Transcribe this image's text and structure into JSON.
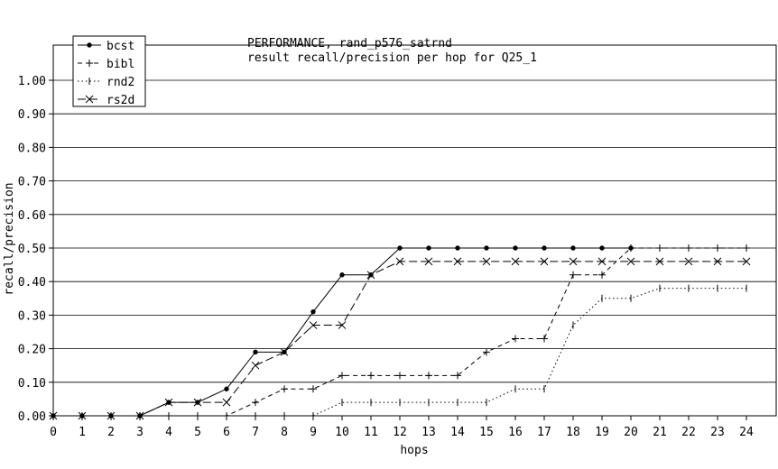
{
  "chart_data": {
    "type": "line",
    "title": "PERFORMANCE, rand_p576_satrnd",
    "subtitle": "result recall/precision per hop for Q25_1",
    "xlabel": "hops",
    "ylabel": "recall/precision",
    "xlim": [
      0,
      24
    ],
    "ylim": [
      0,
      1.05
    ],
    "grid": "horizontal",
    "legend_position": "top-left",
    "x_ticks": [
      "0",
      "1",
      "2",
      "3",
      "4",
      "5",
      "6",
      "7",
      "8",
      "9",
      "10",
      "11",
      "12",
      "13",
      "14",
      "15",
      "16",
      "17",
      "18",
      "19",
      "20",
      "21",
      "22",
      "23",
      "24"
    ],
    "y_ticks": [
      "0.00",
      "0.10",
      "0.20",
      "0.30",
      "0.40",
      "0.50",
      "0.60",
      "0.70",
      "0.80",
      "0.90",
      "1.00"
    ],
    "x": [
      0,
      1,
      2,
      3,
      4,
      5,
      6,
      7,
      8,
      9,
      10,
      11,
      12,
      13,
      14,
      15,
      16,
      17,
      18,
      19,
      20,
      21,
      22,
      23,
      24
    ],
    "series": [
      {
        "name": "bcst",
        "marker": "dot",
        "dash": "solid",
        "values": [
          0,
          0,
          0,
          0,
          0.04,
          0.04,
          0.08,
          0.19,
          0.19,
          0.31,
          0.42,
          0.42,
          0.5,
          0.5,
          0.5,
          0.5,
          0.5,
          0.5,
          0.5,
          0.5,
          0.5,
          null,
          null,
          null,
          null
        ]
      },
      {
        "name": "bibl",
        "marker": "plus",
        "dash": "dashed",
        "values": [
          0,
          0,
          0,
          0,
          0,
          0,
          0,
          0.04,
          0.08,
          0.08,
          0.12,
          0.12,
          0.12,
          0.12,
          0.12,
          0.19,
          0.23,
          0.23,
          0.42,
          0.42,
          0.5,
          0.5,
          0.5,
          0.5,
          0.5
        ]
      },
      {
        "name": "rnd2",
        "marker": "tick",
        "dash": "dotted",
        "values": [
          0,
          0,
          0,
          0,
          0,
          0,
          0,
          0,
          0,
          0,
          0.04,
          0.04,
          0.04,
          0.04,
          0.04,
          0.04,
          0.08,
          0.08,
          0.27,
          0.35,
          0.35,
          0.38,
          0.38,
          0.38,
          0.38
        ]
      },
      {
        "name": "rs2d",
        "marker": "x",
        "dash": "longdash",
        "values": [
          0,
          0,
          0,
          0,
          0.04,
          0.04,
          0.04,
          0.15,
          0.19,
          0.27,
          0.27,
          0.42,
          0.46,
          0.46,
          0.46,
          0.46,
          0.46,
          0.46,
          0.46,
          0.46,
          0.46,
          0.46,
          0.46,
          0.46,
          0.46
        ]
      }
    ]
  }
}
